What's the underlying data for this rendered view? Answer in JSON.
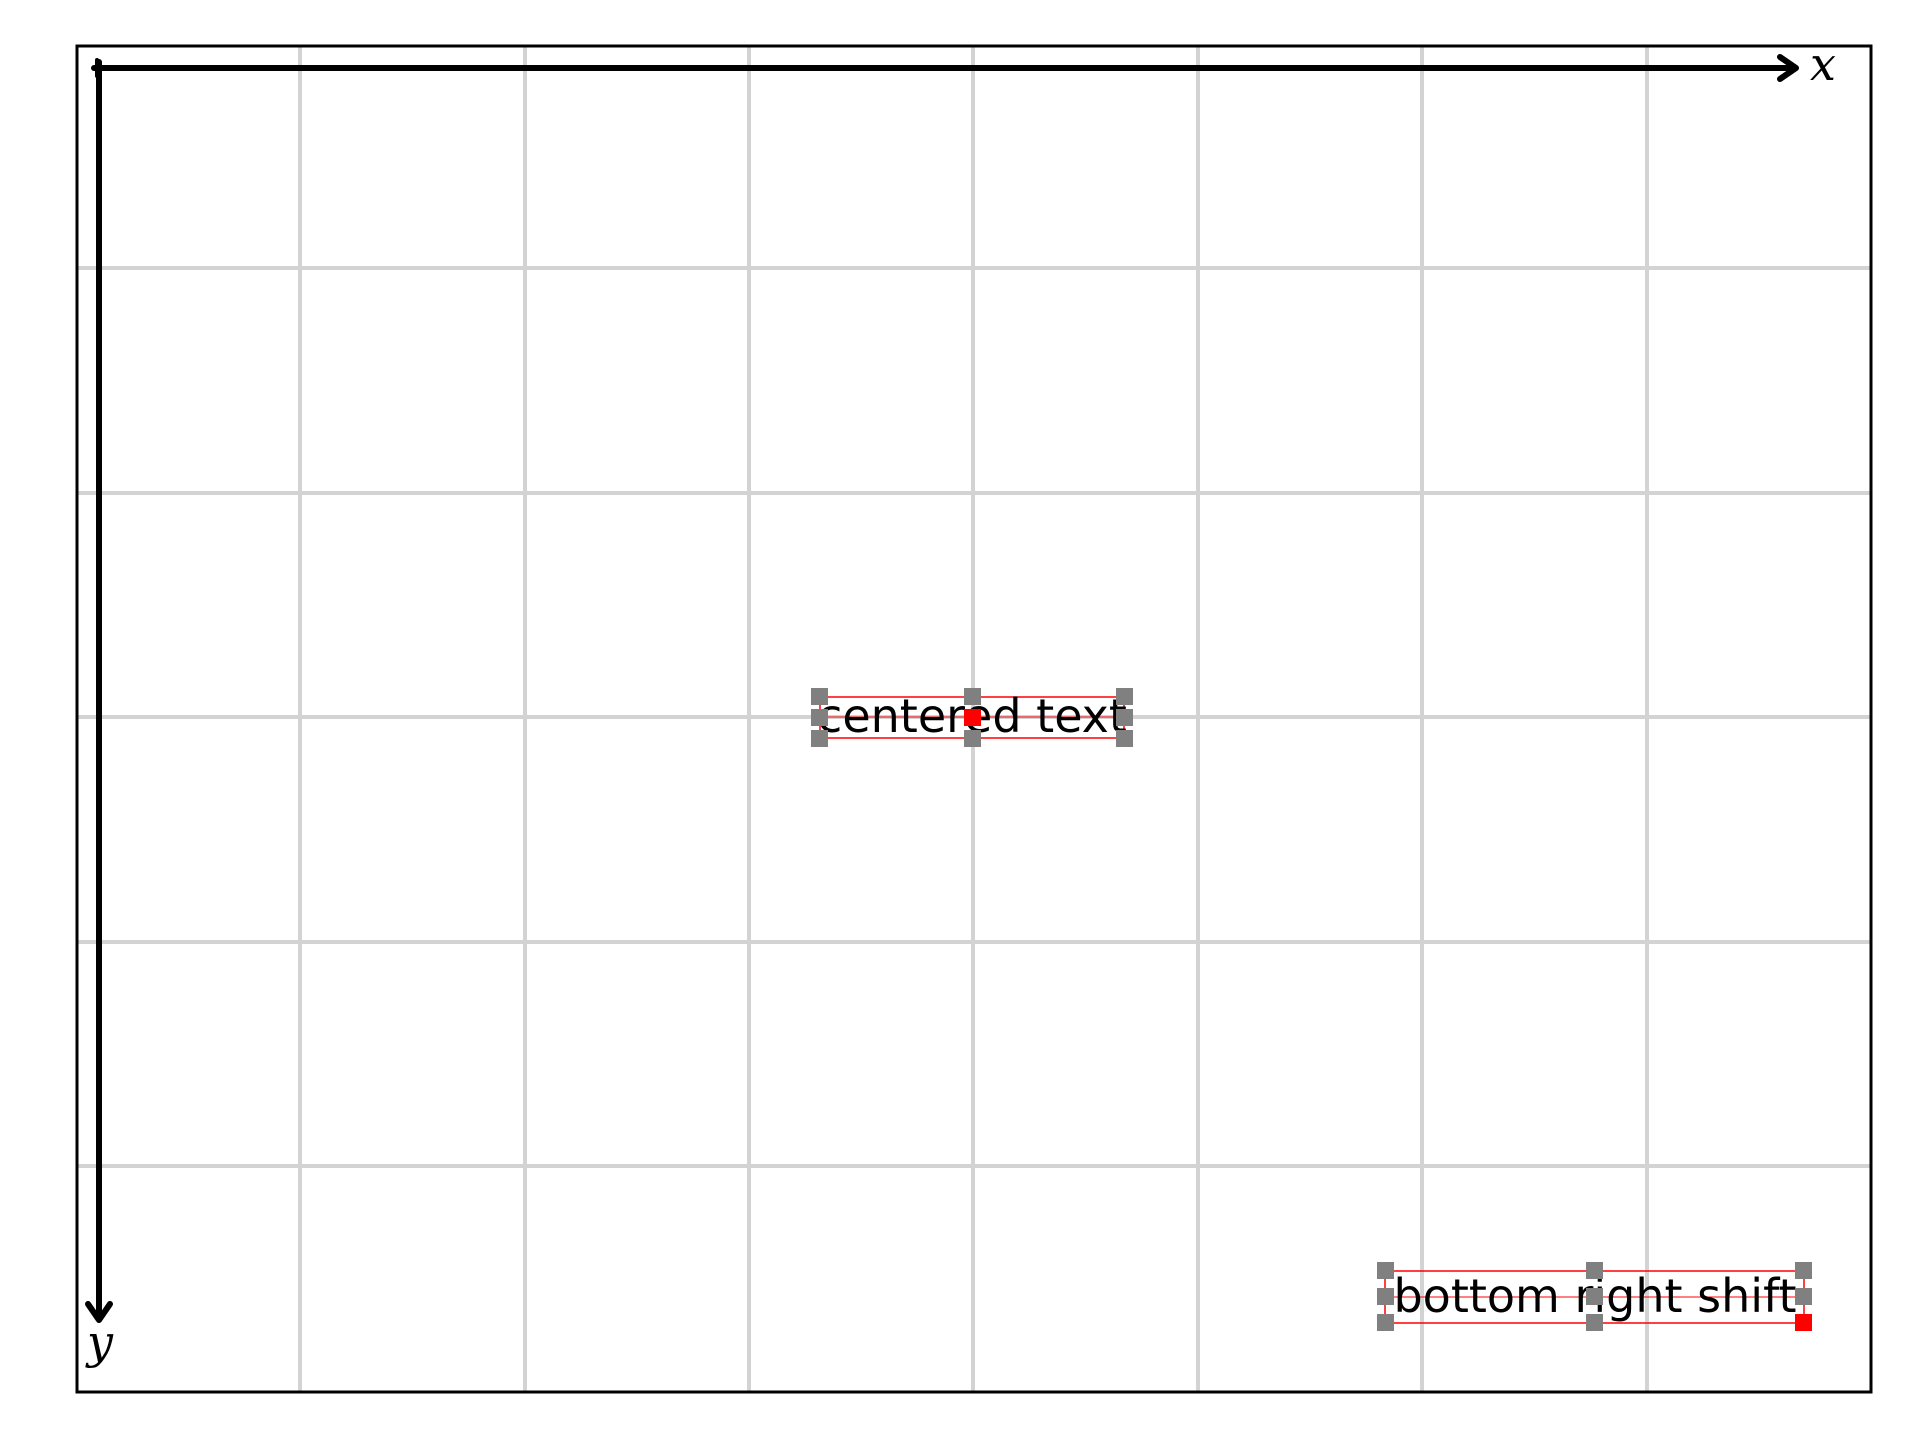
{
  "axes": {
    "x_label": "x",
    "y_label": "y"
  },
  "labels": {
    "centered": "centered text",
    "bottom_right": "bottom right shift"
  },
  "colors": {
    "grid": "#d3d3d3",
    "frame": "#000000",
    "axis": "#000000",
    "handle": "#808080",
    "anchor": "#ff0000",
    "bbox": "#ff0000"
  }
}
